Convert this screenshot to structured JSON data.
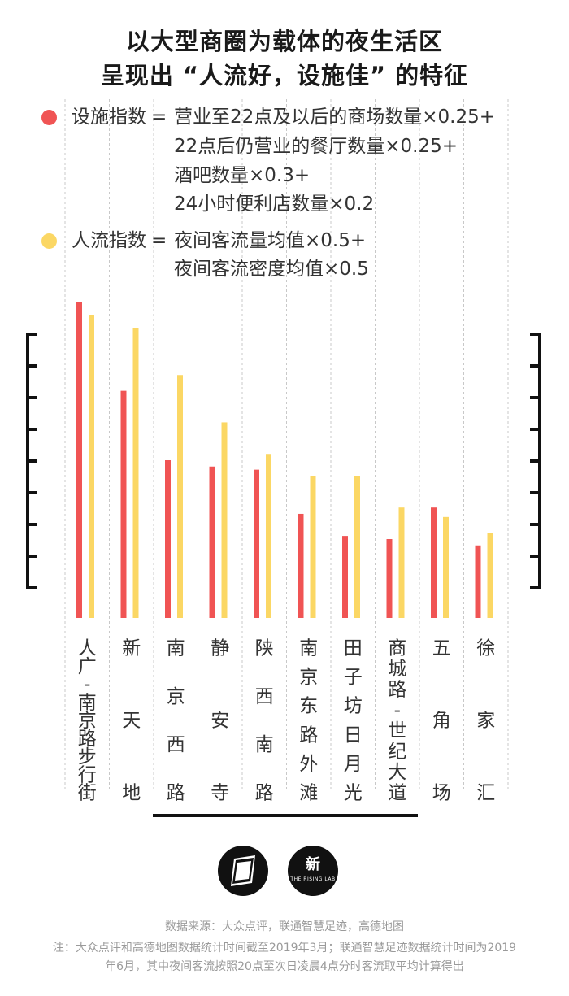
{
  "title": {
    "line1": "以大型商圈为载体的夜生活区",
    "line2": "呈现出 “人流好，设施佳” 的特征"
  },
  "legend": {
    "facility": {
      "label": "设施指数",
      "eq": "=",
      "formula": [
        "营业至22点及以后的商场数量×0.25+",
        "22点后仍营业的餐厅数量×0.25+",
        "酒吧数量×0.3+",
        "24小时便利店数量×0.2"
      ],
      "color": "#f05454"
    },
    "traffic": {
      "label": "人流指数",
      "eq": "=",
      "formula": [
        "夜间客流量均值×0.5+",
        "夜间客流密度均值×0.5"
      ],
      "color": "#fbd764"
    }
  },
  "chart_data": {
    "type": "bar",
    "categories": [
      "人广-南京路步行街",
      "新天地",
      "南京西路",
      "静安寺",
      "陕西南路",
      "南京东路外滩",
      "田子坊日月光",
      "商城路-世纪大道",
      "五角场",
      "徐家汇"
    ],
    "category_display": [
      [
        "人",
        "广",
        "-",
        "南",
        "京",
        "路",
        "步",
        "行",
        "街"
      ],
      [
        "新",
        "天",
        "地"
      ],
      [
        "南",
        "京",
        "西",
        "路"
      ],
      [
        "静",
        "安",
        "寺"
      ],
      [
        "陕",
        "西",
        "南",
        "路"
      ],
      [
        "南",
        "京",
        "东",
        "路",
        "外",
        "滩"
      ],
      [
        "田",
        "子",
        "坊",
        "日",
        "月",
        "光"
      ],
      [
        "商",
        "城",
        "路",
        "-",
        "世",
        "纪",
        "大",
        "道"
      ],
      [
        "五",
        "角",
        "场"
      ],
      [
        "徐",
        "家",
        "汇"
      ]
    ],
    "series": [
      {
        "name": "设施指数",
        "color": "#f05454",
        "values": [
          100,
          72,
          50,
          48,
          47,
          33,
          26,
          25,
          35,
          23
        ]
      },
      {
        "name": "人流指数",
        "color": "#fbd764",
        "values": [
          96,
          92,
          77,
          62,
          52,
          45,
          45,
          35,
          32,
          27
        ]
      }
    ],
    "ylim": [
      0,
      100
    ],
    "title": "",
    "xlabel": "",
    "ylabel": ""
  },
  "logos": {
    "right": "新",
    "right_sub": "THE RISING LAB"
  },
  "source": {
    "line1": "数据来源：大众点评，联通智慧足迹，高德地图",
    "line2": "注：大众点评和高德地图数据统计时间截至2019年3月；联通智慧足迹数据统计时间为2019",
    "line3": "年6月，其中夜间客流按照20点至次日凌晨4点分时客流取平均计算得出"
  }
}
